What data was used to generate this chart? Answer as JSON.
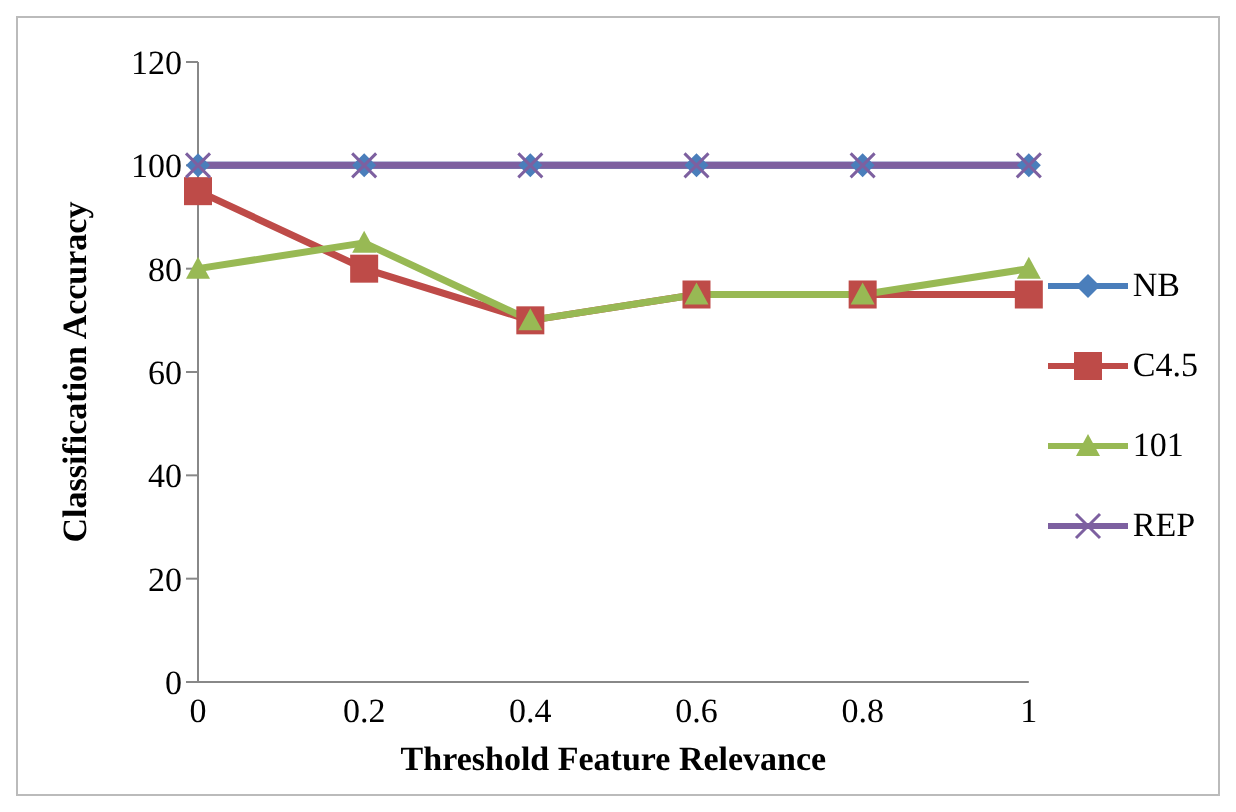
{
  "chart_data": {
    "type": "line",
    "xlabel": "Threshold Feature Relevance",
    "ylabel": "Classification Accuracy",
    "categories": [
      "0",
      "0.2",
      "0.4",
      "0.6",
      "0.8",
      "1"
    ],
    "series": [
      {
        "name": "NB",
        "color": "#4a7ebb",
        "marker": "diamond",
        "values": [
          100,
          100,
          100,
          100,
          100,
          100
        ]
      },
      {
        "name": "C4.5",
        "color": "#be4b48",
        "marker": "square",
        "values": [
          95,
          80,
          70,
          75,
          75,
          75
        ]
      },
      {
        "name": "101",
        "color": "#98b954",
        "marker": "triangle",
        "values": [
          80,
          85,
          70,
          75,
          75,
          80
        ]
      },
      {
        "name": "REP",
        "color": "#7d60a0",
        "marker": "cross",
        "values": [
          100,
          100,
          100,
          100,
          100,
          100
        ]
      }
    ],
    "ylim": [
      0,
      120
    ],
    "yticks": [
      0,
      20,
      40,
      60,
      80,
      100,
      120
    ],
    "grid": false,
    "legend": "right"
  }
}
